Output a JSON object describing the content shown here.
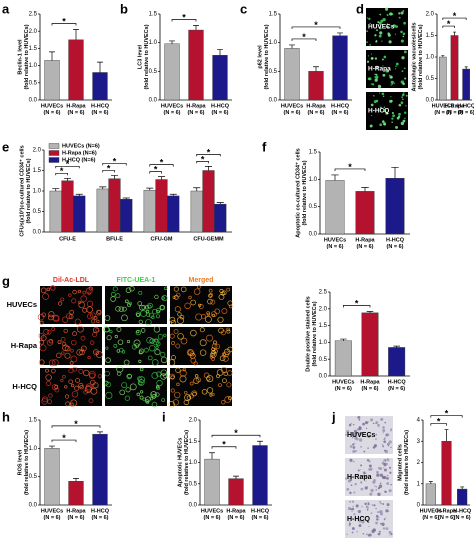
{
  "chart_data": [
    {
      "type": "bar",
      "panel": "a",
      "ylabel": [
        "Beclin-1 level",
        "(fold relative to HUVECs)"
      ],
      "categories": [
        "HUVECs",
        "H-Rapa",
        "H-HCQ"
      ],
      "category_notes": [
        "(N = 6)",
        "(N = 6)",
        "(N = 6)"
      ],
      "colors": [
        "#b3b3b3",
        "#b5122f",
        "#1c1a8a"
      ],
      "values": [
        1.15,
        1.75,
        0.8
      ],
      "errors": [
        0.25,
        0.3,
        0.3
      ],
      "ylim": [
        0,
        2.5
      ],
      "yticks": [
        {
          "value": 0,
          "label": "0.0"
        },
        {
          "value": 0.5,
          "label": "0.5"
        },
        {
          "value": 1,
          "label": "1.0"
        },
        {
          "value": 1.5,
          "label": "1.5"
        },
        {
          "value": 2,
          "label": "2.0"
        },
        {
          "value": 2.5,
          "label": "2.5"
        }
      ],
      "significance": [
        {
          "from": 0,
          "to": 1,
          "label": "*"
        }
      ]
    },
    {
      "type": "bar",
      "panel": "b",
      "ylabel": [
        "LC3 level",
        "(fold relative to HUVECs)"
      ],
      "categories": [
        "HUVECs",
        "H-Rapa",
        "H-HCQ"
      ],
      "category_notes": [
        "(N = 6)",
        "(N = 6)",
        "(N = 6)"
      ],
      "colors": [
        "#b3b3b3",
        "#b5122f",
        "#1c1a8a"
      ],
      "values": [
        0.98,
        1.22,
        0.78
      ],
      "errors": [
        0.05,
        0.08,
        0.1
      ],
      "ylim": [
        0,
        1.5
      ],
      "yticks": [
        {
          "value": 0,
          "label": "0.0"
        },
        {
          "value": 0.5,
          "label": "0.5"
        },
        {
          "value": 1,
          "label": "1.0"
        },
        {
          "value": 1.5,
          "label": "1.5"
        }
      ],
      "significance": [
        {
          "from": 0,
          "to": 1,
          "label": "*"
        }
      ]
    },
    {
      "type": "bar",
      "panel": "c",
      "ylabel": [
        "p62 level",
        "(fold relative to HUVECs)"
      ],
      "categories": [
        "HUVECs",
        "H-Rapa",
        "H-HCQ"
      ],
      "category_notes": [
        "(N = 6)",
        "(N = 6)",
        "(N = 6)"
      ],
      "colors": [
        "#b3b3b3",
        "#b5122f",
        "#1c1a8a"
      ],
      "values": [
        0.9,
        0.5,
        1.12
      ],
      "errors": [
        0.06,
        0.08,
        0.05
      ],
      "ylim": [
        0,
        1.5
      ],
      "yticks": [
        {
          "value": 0,
          "label": "0.0"
        },
        {
          "value": 0.5,
          "label": "0.5"
        },
        {
          "value": 1,
          "label": "1.0"
        },
        {
          "value": 1.5,
          "label": "1.5"
        }
      ],
      "significance": [
        {
          "from": 0,
          "to": 1,
          "label": "*"
        },
        {
          "from": 0,
          "to": 2,
          "label": "*"
        }
      ]
    },
    {
      "type": "bar",
      "panel": "d",
      "image_rows": [
        "HUVECs",
        "H-Rapa",
        "H-HCQ"
      ],
      "ylabel": [
        "Autophagic vacuoles/cells",
        "(fold relative to HUVECs)"
      ],
      "categories": [
        "HUVECs",
        "H-Rapa",
        "H-HCQ"
      ],
      "category_notes": [
        "(N = 6)",
        "(N = 6)",
        "(N = 6)"
      ],
      "colors": [
        "#b3b3b3",
        "#b5122f",
        "#1c1a8a"
      ],
      "values": [
        1.0,
        1.5,
        0.72
      ],
      "errors": [
        0.03,
        0.08,
        0.05
      ],
      "ylim": [
        0,
        2
      ],
      "yticks": [
        {
          "value": 0,
          "label": "0.0"
        },
        {
          "value": 0.5,
          "label": "0.5"
        },
        {
          "value": 1,
          "label": "1.0"
        },
        {
          "value": 1.5,
          "label": "1.5"
        },
        {
          "value": 2,
          "label": "2.0"
        }
      ],
      "significance": [
        {
          "from": 0,
          "to": 1,
          "label": "*"
        },
        {
          "from": 0,
          "to": 2,
          "label": "*"
        }
      ]
    },
    {
      "type": "grouped_bar",
      "panel": "e",
      "ylabel": [
        "CFUs(x10³)co-cultured CD34⁺ cells",
        "(fold relative to HUVECs)"
      ],
      "categories": [
        "CFU-E",
        "BFU-E",
        "CFU-GM",
        "CFU-GEMM"
      ],
      "series": [
        {
          "name": "HUVECs (N=6)",
          "color": "#b3b3b3",
          "values": [
            1.0,
            1.05,
            1.02,
            1.0
          ],
          "errors": [
            0.06,
            0.05,
            0.05,
            0.08
          ]
        },
        {
          "name": "H-Rapa (N=6)",
          "color": "#b5122f",
          "values": [
            1.25,
            1.3,
            1.28,
            1.5
          ],
          "errors": [
            0.06,
            0.08,
            0.07,
            0.1
          ]
        },
        {
          "name": "H-HCQ (N=6)",
          "color": "#1c1a8a",
          "values": [
            0.88,
            0.8,
            0.88,
            0.68
          ],
          "errors": [
            0.04,
            0.03,
            0.04,
            0.04
          ]
        }
      ],
      "ylim": [
        0,
        2
      ],
      "yticks": [
        {
          "value": 0,
          "label": "0.0"
        },
        {
          "value": 0.5,
          "label": "0.5"
        },
        {
          "value": 1,
          "label": "1.0"
        },
        {
          "value": 1.5,
          "label": "1.5"
        },
        {
          "value": 2,
          "label": "2.0"
        }
      ],
      "significance": [
        {
          "category": 0,
          "from": 0,
          "to": 1,
          "label": "*"
        },
        {
          "category": 0,
          "from": 0,
          "to": 2,
          "label": "*"
        },
        {
          "category": 1,
          "from": 0,
          "to": 1,
          "label": "*"
        },
        {
          "category": 1,
          "from": 0,
          "to": 2,
          "label": "*"
        },
        {
          "category": 2,
          "from": 0,
          "to": 1,
          "label": "*"
        },
        {
          "category": 2,
          "from": 0,
          "to": 2,
          "label": "*"
        },
        {
          "category": 3,
          "from": 0,
          "to": 1,
          "label": "*"
        },
        {
          "category": 3,
          "from": 0,
          "to": 2,
          "label": "*"
        }
      ]
    },
    {
      "type": "bar",
      "panel": "f",
      "ylabel": [
        "Apoptotic co-cultured CD34⁺ cells",
        "(fold relative to HUVECs)"
      ],
      "categories": [
        "HUVECs",
        "H-Rapa",
        "H-HCQ"
      ],
      "category_notes": [
        "(N = 6)",
        "(N = 6)",
        "(N = 6)"
      ],
      "colors": [
        "#b3b3b3",
        "#b5122f",
        "#1c1a8a"
      ],
      "values": [
        0.98,
        0.78,
        1.02
      ],
      "errors": [
        0.1,
        0.07,
        0.2
      ],
      "ylim": [
        0,
        1.5
      ],
      "yticks": [
        {
          "value": 0,
          "label": "0.0"
        },
        {
          "value": 0.5,
          "label": "0.5"
        },
        {
          "value": 1,
          "label": "1.0"
        },
        {
          "value": 1.5,
          "label": "1.5"
        }
      ],
      "significance": [
        {
          "from": 0,
          "to": 1,
          "label": "*"
        }
      ]
    },
    {
      "type": "bar",
      "panel": "g",
      "image_rows": [
        "HUVECs",
        "H-Rapa",
        "H-HCQ"
      ],
      "image_columns": [
        "Dil-Ac-LDL",
        "FITC-UEA-1",
        "Merged"
      ],
      "ylabel": [
        "Double positive stained cells",
        "(fold relative to HUVECs)"
      ],
      "categories": [
        "HUVECs",
        "H-Rapa",
        "H-HCQ"
      ],
      "category_notes": [
        "(N = 6)",
        "(N = 6)",
        "(N = 6)"
      ],
      "colors": [
        "#b3b3b3",
        "#b5122f",
        "#1c1a8a"
      ],
      "values": [
        1.05,
        1.88,
        0.85
      ],
      "errors": [
        0.05,
        0.04,
        0.04
      ],
      "ylim": [
        0,
        2.5
      ],
      "yticks": [
        {
          "value": 0,
          "label": "0.0"
        },
        {
          "value": 0.5,
          "label": "0.5"
        },
        {
          "value": 1,
          "label": "1.0"
        },
        {
          "value": 1.5,
          "label": "1.5"
        },
        {
          "value": 2,
          "label": "2.0"
        },
        {
          "value": 2.5,
          "label": "2.5"
        }
      ],
      "significance": [
        {
          "from": 0,
          "to": 1,
          "label": "*"
        }
      ]
    },
    {
      "type": "bar",
      "panel": "h",
      "ylabel": [
        "ROS level",
        "(fold relative to HUVECs)"
      ],
      "categories": [
        "HUVECs",
        "H-Rapa",
        "H-HCQ"
      ],
      "category_notes": [
        "(N = 6)",
        "(N = 6)",
        "(N = 6)"
      ],
      "colors": [
        "#b3b3b3",
        "#b5122f",
        "#1c1a8a"
      ],
      "values": [
        1.0,
        0.42,
        1.25
      ],
      "errors": [
        0.04,
        0.05,
        0.04
      ],
      "ylim": [
        0,
        1.5
      ],
      "yticks": [
        {
          "value": 0,
          "label": "0.0"
        },
        {
          "value": 0.5,
          "label": "0.5"
        },
        {
          "value": 1,
          "label": "1.0"
        },
        {
          "value": 1.5,
          "label": "1.5"
        }
      ],
      "significance": [
        {
          "from": 0,
          "to": 1,
          "label": "*"
        },
        {
          "from": 0,
          "to": 2,
          "label": "*"
        }
      ]
    },
    {
      "type": "bar",
      "panel": "i",
      "ylabel": [
        "Apoptotic HUVECs",
        "(fold relative to HUVECs)"
      ],
      "categories": [
        "HUVECs",
        "H-Rapa",
        "H-HCQ"
      ],
      "category_notes": [
        "(N = 6)",
        "(N = 6)",
        "(N = 6)"
      ],
      "colors": [
        "#b3b3b3",
        "#b5122f",
        "#1c1a8a"
      ],
      "values": [
        1.08,
        0.62,
        1.4
      ],
      "errors": [
        0.15,
        0.06,
        0.1
      ],
      "ylim": [
        0,
        2
      ],
      "yticks": [
        {
          "value": 0,
          "label": "0.0"
        },
        {
          "value": 0.5,
          "label": "0.5"
        },
        {
          "value": 1,
          "label": "1.0"
        },
        {
          "value": 1.5,
          "label": "1.5"
        },
        {
          "value": 2,
          "label": "2.0"
        }
      ],
      "significance": [
        {
          "from": 0,
          "to": 1,
          "label": "*"
        },
        {
          "from": 0,
          "to": 2,
          "label": "*"
        }
      ]
    },
    {
      "type": "bar",
      "panel": "j",
      "image_rows": [
        "HUVECs",
        "H-Rapa",
        "H-HCQ"
      ],
      "ylabel": [
        "Migrated cells",
        "(fold relative to HUVECs)"
      ],
      "categories": [
        "HUVECs",
        "H-Rapa",
        "H-HCQ"
      ],
      "category_notes": [
        "(N = 6)",
        "(N = 6)",
        "(N = 6)"
      ],
      "colors": [
        "#b3b3b3",
        "#b5122f",
        "#1c1a8a"
      ],
      "values": [
        1.0,
        3.0,
        0.75
      ],
      "errors": [
        0.1,
        0.55,
        0.1
      ],
      "ylim": [
        0,
        4
      ],
      "yticks": [
        0,
        1,
        2,
        3,
        4
      ],
      "significance": [
        {
          "from": 0,
          "to": 1,
          "label": "*"
        },
        {
          "from": 0,
          "to": 2,
          "label": "*"
        }
      ]
    }
  ]
}
